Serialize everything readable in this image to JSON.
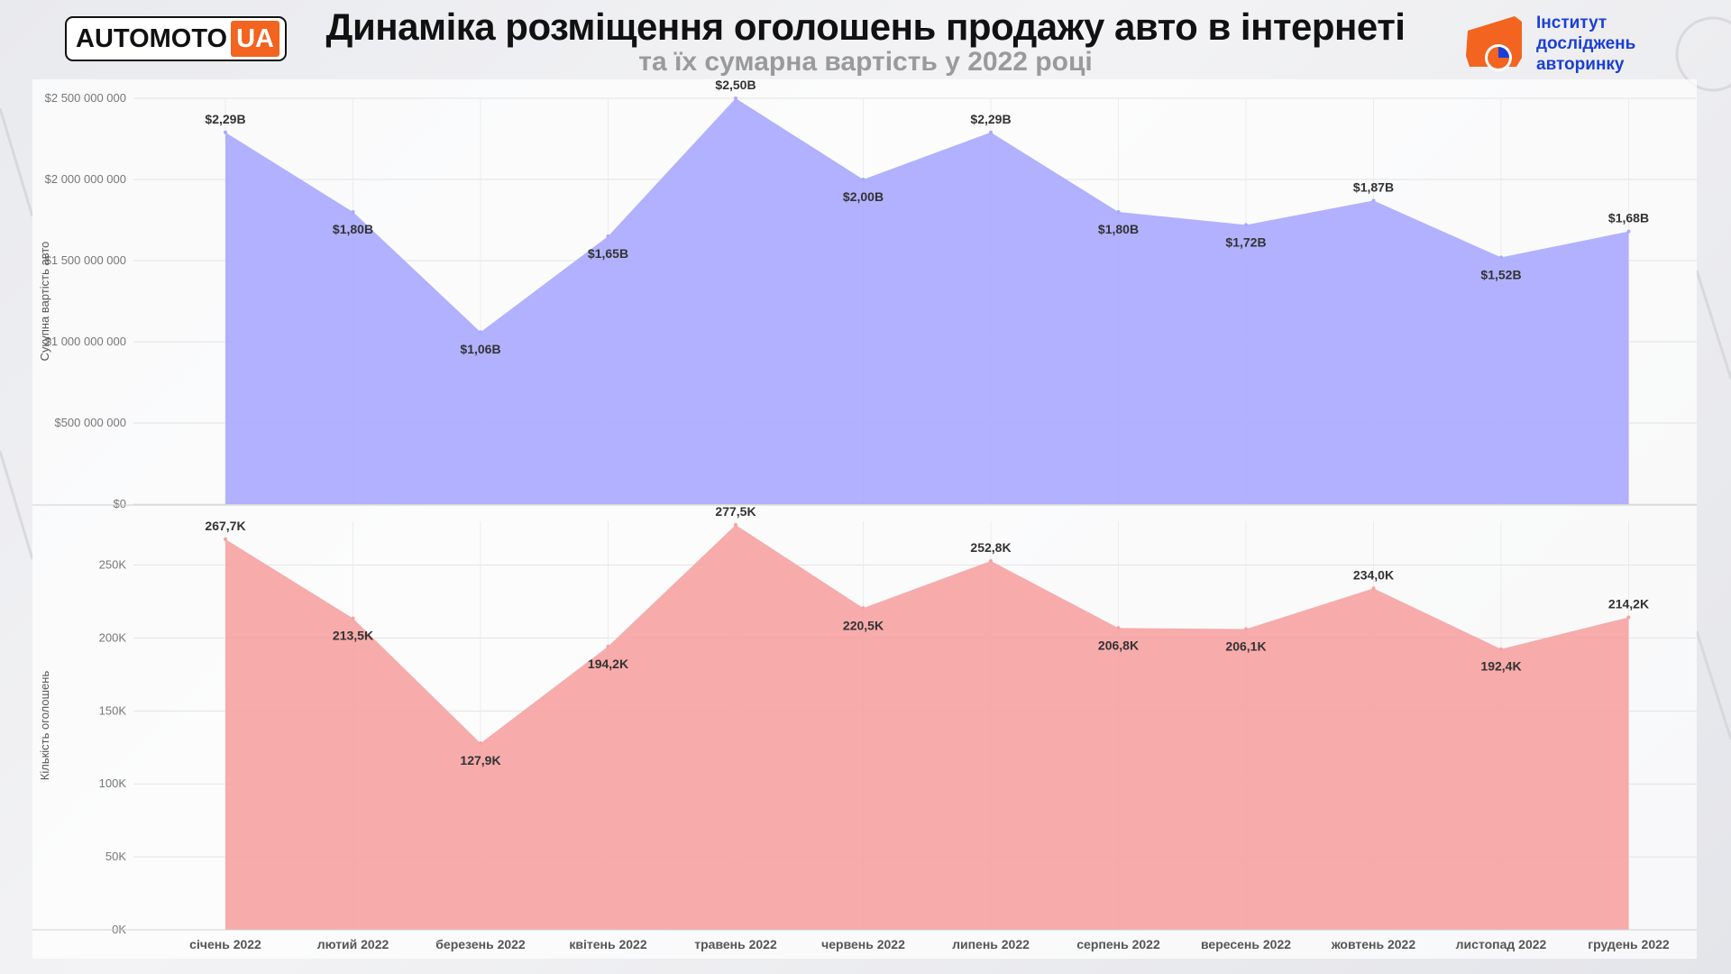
{
  "header": {
    "title": "Динаміка розміщення оголошень продажу авто в інтернеті",
    "subtitle": "та їх сумарна вартість у 2022 році",
    "logo_left_main": "AUTOMOTO",
    "logo_left_accent": "UA",
    "logo_right_line1": "Інститут",
    "logo_right_line2": "досліджень",
    "logo_right_line3": "авторинку"
  },
  "colors": {
    "value_fill": "#a9a9ff",
    "count_fill": "#f6a2a2",
    "brand_orange": "#f2641f",
    "brand_blue": "#1b3fd6"
  },
  "chart_data": [
    {
      "type": "area",
      "categories": [
        "січень 2022",
        "лютий 2022",
        "березень 2022",
        "квітень 2022",
        "травень 2022",
        "червень 2022",
        "липень 2022",
        "серпень 2022",
        "вересень 2022",
        "жовтень 2022",
        "листопад 2022",
        "грудень 2022"
      ],
      "series": [
        {
          "values": [
            2290000000,
            1800000000,
            1060000000,
            1650000000,
            2500000000,
            2000000000,
            2290000000,
            1800000000,
            1720000000,
            1870000000,
            1520000000,
            1680000000
          ],
          "data_labels": [
            "$2,29B",
            "$1,80B",
            "$1,06B",
            "$1,65B",
            "$2,50B",
            "$2,00B",
            "$2,29B",
            "$1,80B",
            "$1,72B",
            "$1,87B",
            "$1,52B",
            "$1,68B"
          ]
        }
      ],
      "ylabel": "Сукупна вартість авто",
      "ylim": [
        0,
        2500000000
      ],
      "yticks": [
        0,
        500000000,
        1000000000,
        1500000000,
        2000000000,
        2500000000
      ],
      "ytick_labels": [
        "$0",
        "$500 000 000",
        "$1 000 000 000",
        "$1 500 000 000",
        "$2 000 000 000",
        "$2 500 000 000"
      ],
      "grid": true
    },
    {
      "type": "area",
      "categories": [
        "січень 2022",
        "лютий 2022",
        "березень 2022",
        "квітень 2022",
        "травень 2022",
        "червень 2022",
        "липень 2022",
        "серпень 2022",
        "вересень 2022",
        "жовтень 2022",
        "листопад 2022",
        "грудень 2022"
      ],
      "series": [
        {
          "values": [
            267700,
            213500,
            127900,
            194200,
            277500,
            220500,
            252800,
            206800,
            206100,
            234000,
            192400,
            214200
          ],
          "data_labels": [
            "267,7K",
            "213,5K",
            "127,9K",
            "194,2K",
            "277,5K",
            "220,5K",
            "252,8K",
            "206,8K",
            "206,1K",
            "234,0K",
            "192,4K",
            "214,2K"
          ]
        }
      ],
      "ylabel": "Кількість оголошень",
      "ylim": [
        0,
        280000
      ],
      "yticks": [
        0,
        50000,
        100000,
        150000,
        200000,
        250000
      ],
      "ytick_labels": [
        "0K",
        "50K",
        "100K",
        "150K",
        "200K",
        "250K"
      ],
      "xtick_labels": [
        "січень 2022",
        "лютий 2022",
        "березень 2022",
        "квітень 2022",
        "травень 2022",
        "червень 2022",
        "липень 2022",
        "серпень 2022",
        "вересень 2022",
        "жовтень 2022",
        "листопад 2022",
        "грудень 2022"
      ],
      "grid": true
    }
  ]
}
